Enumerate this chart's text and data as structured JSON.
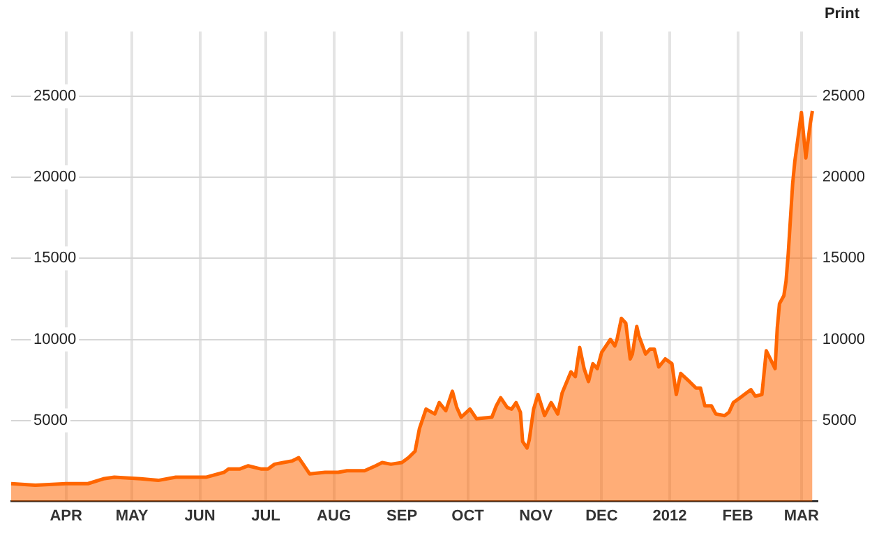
{
  "chart_data": {
    "type": "area",
    "annotations": [
      "Print"
    ],
    "x": [
      "2011-03-07",
      "2011-03-18",
      "2011-04-01",
      "2011-04-11",
      "2011-04-18",
      "2011-04-23",
      "2011-05-05",
      "2011-05-13",
      "2011-05-21",
      "2011-06-04",
      "2011-06-12",
      "2011-06-14",
      "2011-06-19",
      "2011-06-23",
      "2011-06-29",
      "2011-07-02",
      "2011-07-05",
      "2011-07-09",
      "2011-07-13",
      "2011-07-16",
      "2011-07-18",
      "2011-07-21",
      "2011-07-28",
      "2011-08-03",
      "2011-08-07",
      "2011-08-15",
      "2011-08-20",
      "2011-08-23",
      "2011-08-27",
      "2011-09-01",
      "2011-09-04",
      "2011-09-07",
      "2011-09-09",
      "2011-09-12",
      "2011-09-16",
      "2011-09-18",
      "2011-09-21",
      "2011-09-24",
      "2011-09-26",
      "2011-09-28",
      "2011-10-02",
      "2011-10-05",
      "2011-10-12",
      "2011-10-14",
      "2011-10-16",
      "2011-10-19",
      "2011-10-21",
      "2011-10-23",
      "2011-10-25",
      "2011-10-26",
      "2011-10-28",
      "2011-10-29",
      "2011-10-31",
      "2011-11-02",
      "2011-11-05",
      "2011-11-08",
      "2011-11-11",
      "2011-11-13",
      "2011-11-17",
      "2011-11-19",
      "2011-11-21",
      "2011-11-23",
      "2011-11-25",
      "2011-11-27",
      "2011-11-29",
      "2011-12-01",
      "2011-12-05",
      "2011-12-07",
      "2011-12-08",
      "2011-12-10",
      "2011-12-12",
      "2011-12-14",
      "2011-12-15",
      "2011-12-17",
      "2011-12-18",
      "2011-12-21",
      "2011-12-23",
      "2011-12-25",
      "2011-12-27",
      "2011-12-30",
      "2012-01-02",
      "2012-01-04",
      "2012-01-06",
      "2012-01-10",
      "2012-01-13",
      "2012-01-15",
      "2012-01-17",
      "2012-01-20",
      "2012-01-22",
      "2012-01-26",
      "2012-01-28",
      "2012-01-30",
      "2012-02-02",
      "2012-02-04",
      "2012-02-07",
      "2012-02-09",
      "2012-02-12",
      "2012-02-14",
      "2012-02-18",
      "2012-02-19",
      "2012-02-20",
      "2012-02-22",
      "2012-02-23",
      "2012-02-24",
      "2012-02-26",
      "2012-02-27",
      "2012-03-01",
      "2012-03-03",
      "2012-03-05",
      "2012-03-06"
    ],
    "series": [
      {
        "color": "#ff6600",
        "values": [
          1100,
          1000,
          1100,
          1100,
          1400,
          1500,
          1400,
          1300,
          1500,
          1500,
          1800,
          2000,
          2000,
          2200,
          2000,
          2000,
          2300,
          2400,
          2500,
          2700,
          2300,
          1700,
          1800,
          1800,
          1900,
          1900,
          2200,
          2400,
          2300,
          2400,
          2700,
          3100,
          4500,
          5700,
          5400,
          6100,
          5600,
          6800,
          5800,
          5200,
          5700,
          5100,
          5200,
          5900,
          6400,
          5800,
          5700,
          6100,
          5500,
          3700,
          3300,
          3800,
          5700,
          6600,
          5300,
          6100,
          5400,
          6700,
          8000,
          7700,
          9500,
          8200,
          7400,
          8500,
          8200,
          9200,
          10000,
          9600,
          10000,
          11300,
          11000,
          8800,
          9100,
          10800,
          10200,
          9100,
          9400,
          9400,
          8300,
          8800,
          8500,
          6600,
          7900,
          7400,
          7000,
          7000,
          5900,
          5900,
          5400,
          5300,
          5500,
          6100,
          6400,
          6600,
          6900,
          6500,
          6600,
          9300,
          8200,
          10700,
          12200,
          12700,
          13600,
          15300,
          19600,
          21000,
          24000,
          21200,
          23300,
          24100
        ]
      }
    ],
    "xlim": [
      "2011-03-07",
      "2012-03-08"
    ],
    "xticks": [
      {
        "value": "2011-04-01",
        "label": "APR"
      },
      {
        "value": "2011-05-01",
        "label": "MAY"
      },
      {
        "value": "2011-06-01",
        "label": "JUN"
      },
      {
        "value": "2011-07-01",
        "label": "JUL"
      },
      {
        "value": "2011-08-01",
        "label": "AUG"
      },
      {
        "value": "2011-09-01",
        "label": "SEP"
      },
      {
        "value": "2011-10-01",
        "label": "OCT"
      },
      {
        "value": "2011-11-01",
        "label": "NOV"
      },
      {
        "value": "2011-12-01",
        "label": "DEC"
      },
      {
        "value": "2012-01-01",
        "label": "2012"
      },
      {
        "value": "2012-02-01",
        "label": "FEB"
      },
      {
        "value": "2012-03-01",
        "label": "MAR"
      }
    ],
    "ylim": [
      0,
      29000
    ],
    "yticks": [
      5000,
      10000,
      15000,
      20000,
      25000
    ],
    "y2lim": [
      0,
      29000
    ],
    "y2ticks": [
      5000,
      10000,
      15000,
      20000,
      25000
    ],
    "grid": true,
    "legend": false,
    "marker": "none",
    "line_style": "solid"
  }
}
